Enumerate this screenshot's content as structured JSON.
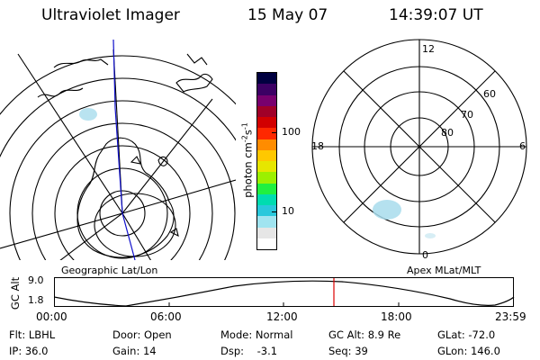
{
  "header": {
    "instrument": "Ultraviolet Imager",
    "date": "15 May 07",
    "time": "14:39:07 UT"
  },
  "geo_panel": {
    "label": "Geographic Lat/Lon"
  },
  "mag_panel": {
    "label": "Apex MLat/MLT",
    "mlt_labels": [
      "12",
      "18",
      "6",
      "0"
    ],
    "lat_labels": [
      "60",
      "70",
      "80"
    ]
  },
  "colorbar": {
    "unit_label": "photon cm",
    "unit_exp1": "-2",
    "unit_mid": "s",
    "unit_exp2": "-1",
    "tick_labels": [
      "100",
      "10"
    ],
    "colors": [
      "#ffffff",
      "#e6e6e6",
      "#a0e4f0",
      "#29c8dc",
      "#00dcb0",
      "#20f040",
      "#9cf000",
      "#e6e600",
      "#ffc800",
      "#ff8c00",
      "#ff2800",
      "#d20000",
      "#a00028",
      "#78006e",
      "#3c0064",
      "#000040"
    ]
  },
  "orbit": {
    "y_label": "GC Alt",
    "y_ticks": [
      "9.0",
      "1.8"
    ],
    "time_ticks": [
      "00:00",
      "06:00",
      "12:00",
      "18:00",
      "23:59"
    ]
  },
  "info": {
    "filter": "Flt: LBHL",
    "door": "Door: Open",
    "mode": "Mode: Normal",
    "gc_alt": "GC Alt: 8.9 Re",
    "glat": "GLat: -72.0",
    "ip": "IP: 36.0",
    "gain": "Gain: 14",
    "dsp": "Dsp:    -3.1",
    "seq": "Seq: 39",
    "glon": "GLon: 146.0"
  },
  "colors": {
    "current_time_marker": "#dd0000",
    "ephemeris_track": "#1010cc",
    "aurora": "#a8dcec"
  }
}
